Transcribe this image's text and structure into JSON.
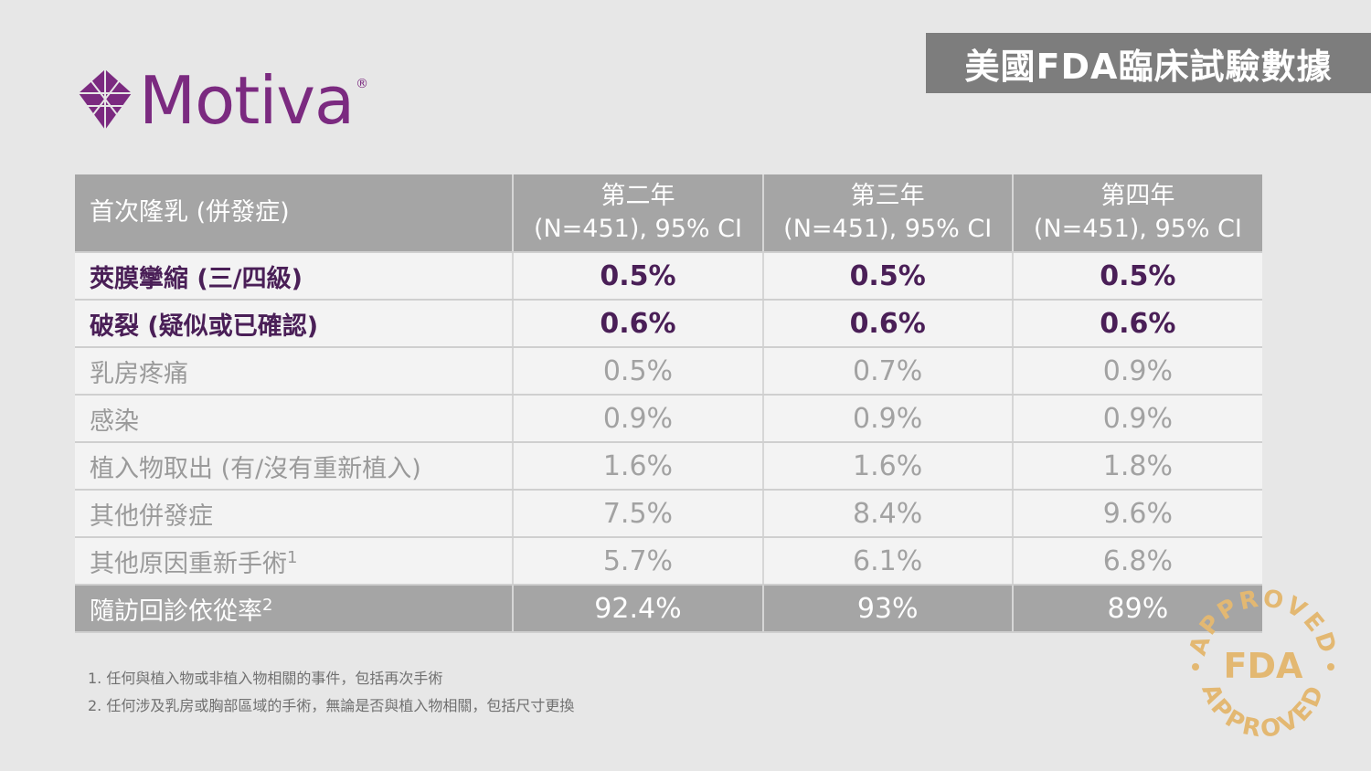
{
  "header": {
    "title": "美國FDA臨床試驗數據"
  },
  "logo": {
    "brand": "Motiva",
    "registered": "®",
    "color": "#7b2a80"
  },
  "table": {
    "header": {
      "label": "首次隆乳 (併發症)",
      "years": [
        {
          "year": "第二年",
          "sub": "(N=451), 95% CI"
        },
        {
          "year": "第三年",
          "sub": "(N=451), 95% CI"
        },
        {
          "year": "第四年",
          "sub": "(N=451), 95% CI"
        }
      ]
    },
    "rows": [
      {
        "label": "莢膜攣縮 (三/四級)",
        "sup": "",
        "values": [
          "0.5%",
          "0.5%",
          "0.5%"
        ]
      },
      {
        "label": "破裂 (疑似或已確認)",
        "sup": "",
        "values": [
          "0.6%",
          "0.6%",
          "0.6%"
        ]
      },
      {
        "label": "乳房疼痛",
        "sup": "",
        "values": [
          "0.5%",
          "0.7%",
          "0.9%"
        ]
      },
      {
        "label": "感染",
        "sup": "",
        "values": [
          "0.9%",
          "0.9%",
          "0.9%"
        ]
      },
      {
        "label": "植入物取出 (有/沒有重新植入)",
        "sup": "",
        "values": [
          "1.6%",
          "1.6%",
          "1.8%"
        ]
      },
      {
        "label": "其他併發症",
        "sup": "",
        "values": [
          "7.5%",
          "8.4%",
          "9.6%"
        ]
      },
      {
        "label": "其他原因重新手術",
        "sup": "1",
        "values": [
          "5.7%",
          "6.1%",
          "6.8%"
        ]
      },
      {
        "label": "隨訪回診依從率",
        "sup": "2",
        "values": [
          "92.4%",
          "93%",
          "89%"
        ]
      }
    ]
  },
  "footnotes": [
    "1. 任何與植入物或非植入物相關的事件，包括再次手術",
    "2. 任何涉及乳房或胸部區域的手術，無論是否與植入物相關，包括尺寸更換"
  ],
  "stamp": {
    "top": "APPROVED",
    "center": "FDA",
    "bottom": "APPROVED",
    "color": "#e3b872"
  }
}
